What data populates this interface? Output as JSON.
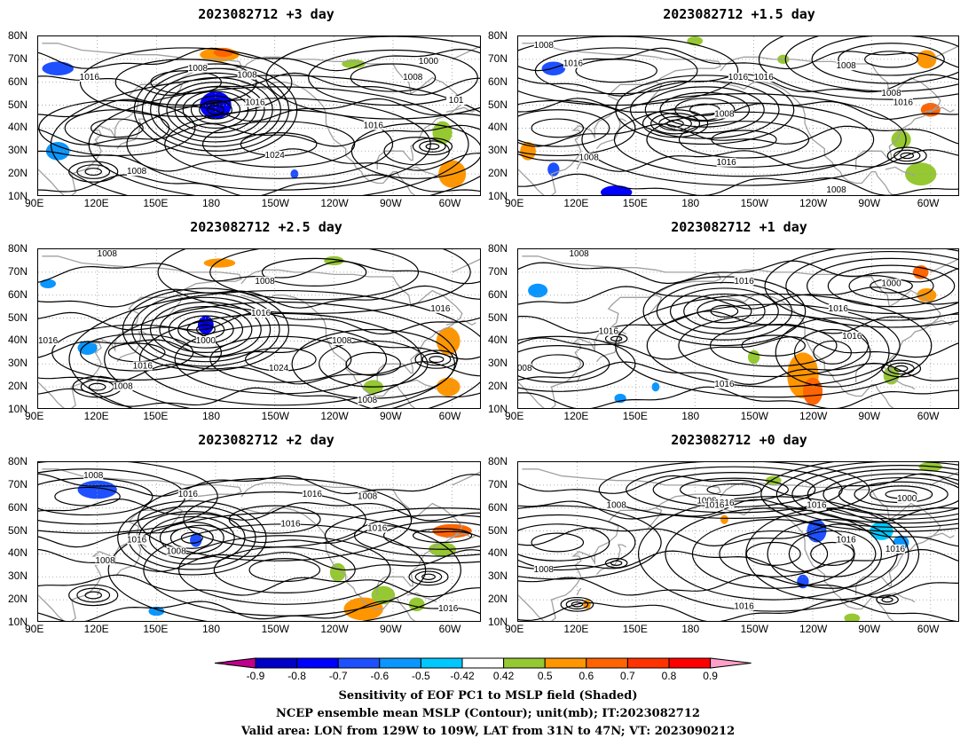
{
  "panels": [
    {
      "title": "2023082712  +3 day",
      "pressure_labels": [
        {
          "text": "1000",
          "lon": -72,
          "lat": 68
        },
        {
          "text": "1016",
          "lon": 116,
          "lat": 61
        },
        {
          "text": "1008",
          "lon": 171,
          "lat": 65
        },
        {
          "text": "1008",
          "lon": -164,
          "lat": 62
        },
        {
          "text": "1008",
          "lon": -80,
          "lat": 61
        },
        {
          "text": "1016",
          "lon": -160,
          "lat": 50
        },
        {
          "text": "1016",
          "lon": -100,
          "lat": 40
        },
        {
          "text": "1024",
          "lon": -150,
          "lat": 27
        },
        {
          "text": "1008",
          "lon": 140,
          "lat": 20
        },
        {
          "text": "101",
          "lon": -58,
          "lat": 51
        }
      ]
    },
    {
      "title": "2023082712  +1.5 day",
      "pressure_labels": [
        {
          "text": "1008",
          "lon": 103,
          "lat": 75
        },
        {
          "text": "1016",
          "lon": 118,
          "lat": 67
        },
        {
          "text": "1008",
          "lon": -103,
          "lat": 66
        },
        {
          "text": "1016",
          "lon": -158,
          "lat": 61
        },
        {
          "text": "1016",
          "lon": -145,
          "lat": 61
        },
        {
          "text": "1008",
          "lon": -80,
          "lat": 54
        },
        {
          "text": "1016",
          "lon": -74,
          "lat": 50
        },
        {
          "text": "1008",
          "lon": -165,
          "lat": 45
        },
        {
          "text": "1008",
          "lon": 126,
          "lat": 26
        },
        {
          "text": "1016",
          "lon": -164,
          "lat": 24
        },
        {
          "text": "1008",
          "lon": -108,
          "lat": 12
        }
      ]
    },
    {
      "title": "2023082712  +2.5 day",
      "pressure_labels": [
        {
          "text": "1008",
          "lon": 125,
          "lat": 77
        },
        {
          "text": "1008",
          "lon": -155,
          "lat": 65
        },
        {
          "text": "1016",
          "lon": -157,
          "lat": 51
        },
        {
          "text": "1016",
          "lon": -66,
          "lat": 53
        },
        {
          "text": "1000",
          "lon": 175,
          "lat": 39
        },
        {
          "text": "1016",
          "lon": 95,
          "lat": 39
        },
        {
          "text": "1008",
          "lon": -116,
          "lat": 39
        },
        {
          "text": "1016",
          "lon": 143,
          "lat": 28
        },
        {
          "text": "1024",
          "lon": -148,
          "lat": 27
        },
        {
          "text": "1008",
          "lon": 133,
          "lat": 19
        },
        {
          "text": "1008",
          "lon": -103,
          "lat": 13
        }
      ]
    },
    {
      "title": "2023082712  +1 day",
      "pressure_labels": [
        {
          "text": "1008",
          "lon": 121,
          "lat": 77
        },
        {
          "text": "1016",
          "lon": -155,
          "lat": 65
        },
        {
          "text": "1000",
          "lon": -80,
          "lat": 64
        },
        {
          "text": "1016",
          "lon": -107,
          "lat": 53
        },
        {
          "text": "1016",
          "lon": 136,
          "lat": 43
        },
        {
          "text": "1016",
          "lon": -100,
          "lat": 41
        },
        {
          "text": "1008",
          "lon": 92,
          "lat": 27
        },
        {
          "text": "1016",
          "lon": -165,
          "lat": 20
        }
      ]
    },
    {
      "title": "2023082712  +2 day",
      "pressure_labels": [
        {
          "text": "1008",
          "lon": 118,
          "lat": 73
        },
        {
          "text": "1016",
          "lon": 166,
          "lat": 65
        },
        {
          "text": "1016",
          "lon": -131,
          "lat": 65
        },
        {
          "text": "1008",
          "lon": -103,
          "lat": 64
        },
        {
          "text": "1016",
          "lon": -142,
          "lat": 52
        },
        {
          "text": "1016",
          "lon": -98,
          "lat": 50
        },
        {
          "text": "1016",
          "lon": 140,
          "lat": 45
        },
        {
          "text": "1008",
          "lon": 160,
          "lat": 40
        },
        {
          "text": "1008",
          "lon": 124,
          "lat": 36
        },
        {
          "text": "1016",
          "lon": -62,
          "lat": 15
        }
      ]
    },
    {
      "title": "2023082712  +0 day",
      "pressure_labels": [
        {
          "text": "1008",
          "lon": -174,
          "lat": 62
        },
        {
          "text": "1016",
          "lon": -165,
          "lat": 61
        },
        {
          "text": "1016",
          "lon": -170,
          "lat": 60
        },
        {
          "text": "1008",
          "lon": 140,
          "lat": 60
        },
        {
          "text": "1016",
          "lon": -118,
          "lat": 60
        },
        {
          "text": "1000",
          "lon": -72,
          "lat": 63
        },
        {
          "text": "1016",
          "lon": -103,
          "lat": 45
        },
        {
          "text": "1016",
          "lon": -78,
          "lat": 41
        },
        {
          "text": "1008",
          "lon": 103,
          "lat": 32
        },
        {
          "text": "1016",
          "lon": -155,
          "lat": 16
        }
      ]
    }
  ],
  "axes": {
    "lon_ticks": [
      "90E",
      "120E",
      "150E",
      "180",
      "150W",
      "120W",
      "90W",
      "60W"
    ],
    "lat_ticks": [
      "80N",
      "70N",
      "60N",
      "50N",
      "40N",
      "30N",
      "20N",
      "10N"
    ],
    "lon_range": [
      90,
      315
    ],
    "lat_range": [
      10,
      80
    ]
  },
  "colorbar": {
    "labels": [
      "-0.9",
      "-0.8",
      "-0.7",
      "-0.6",
      "-0.5",
      "-0.42",
      "0.42",
      "0.5",
      "0.6",
      "0.7",
      "0.8",
      "0.9"
    ],
    "colors": [
      "#c0008c",
      "#0000c8",
      "#0000ff",
      "#1e50ff",
      "#0a96ff",
      "#00c8ff",
      "#ffffff",
      "#96c832",
      "#ff9600",
      "#ff6400",
      "#ff3200",
      "#ff0000",
      "#ffa0c8"
    ]
  },
  "caption": {
    "line1": "Sensitivity of EOF PC1 to MSLP field (Shaded)",
    "line2": "NCEP ensemble mean MSLP (Contour); unit(mb); IT:2023082712",
    "line3": "Valid area: LON from 129W to 109W, LAT from 31N to 47N; VT: 2023090212"
  }
}
